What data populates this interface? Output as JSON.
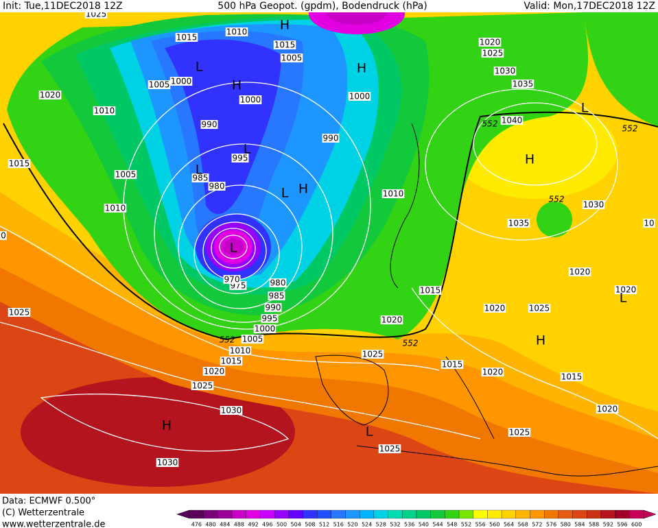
{
  "header": {
    "init": "Init: Tue,11DEC2018 12Z",
    "title": "500 hPa Geopot. (gpdm), Bodendruck (hPa)",
    "valid": "Valid: Mon,17DEC2018 12Z"
  },
  "footer": {
    "data": "Data: ECMWF  0.500°",
    "copyright": "(C) Wetterzentrale",
    "url": "www.wetterzentrale.de"
  },
  "colorbar": {
    "labels": [
      476,
      480,
      484,
      488,
      492,
      496,
      500,
      504,
      508,
      512,
      516,
      520,
      524,
      528,
      532,
      536,
      540,
      544,
      548,
      552,
      556,
      560,
      564,
      568,
      572,
      576,
      580,
      584,
      588,
      592,
      596,
      600
    ],
    "colors": [
      "#5a005a",
      "#780078",
      "#9b009b",
      "#c800c8",
      "#e100e1",
      "#c800ff",
      "#9600ff",
      "#6400ff",
      "#3232ff",
      "#1e50ff",
      "#2878ff",
      "#1e96ff",
      "#00b4ff",
      "#00d2e6",
      "#00dcb4",
      "#00d28c",
      "#00c864",
      "#14c83c",
      "#32d214",
      "#78e600",
      "#ffff00",
      "#ffeb00",
      "#ffd200",
      "#ffb400",
      "#ff9600",
      "#f07800",
      "#e65a14",
      "#dc4614",
      "#c83214",
      "#b4141e",
      "#a00028",
      "#c8005a"
    ]
  },
  "map": {
    "isobar_labels": [
      1025,
      1015,
      1010,
      1015,
      1005,
      1020,
      1025,
      1030,
      1035,
      1040,
      1020,
      1010,
      1005,
      1000,
      1000,
      1000,
      990,
      990,
      995,
      985,
      980,
      1015,
      1005,
      1010,
      1010,
      1035,
      1030,
      10,
      1020,
      1020,
      1020,
      1025,
      980,
      985,
      990,
      995,
      1000,
      1005,
      1010,
      1015,
      1020,
      1025,
      1030,
      1025,
      1015,
      1020,
      1025,
      1015,
      1020,
      1015,
      1020,
      1025,
      1025,
      1030,
      975,
      970,
      0
    ],
    "height_labels": [
      552,
      552,
      552,
      552,
      552
    ],
    "pressure_centers": [
      "H",
      "H",
      "L",
      "L",
      "L",
      "H",
      "L",
      "H",
      "L",
      "L",
      "H",
      "H",
      "L",
      "H",
      "L"
    ]
  }
}
